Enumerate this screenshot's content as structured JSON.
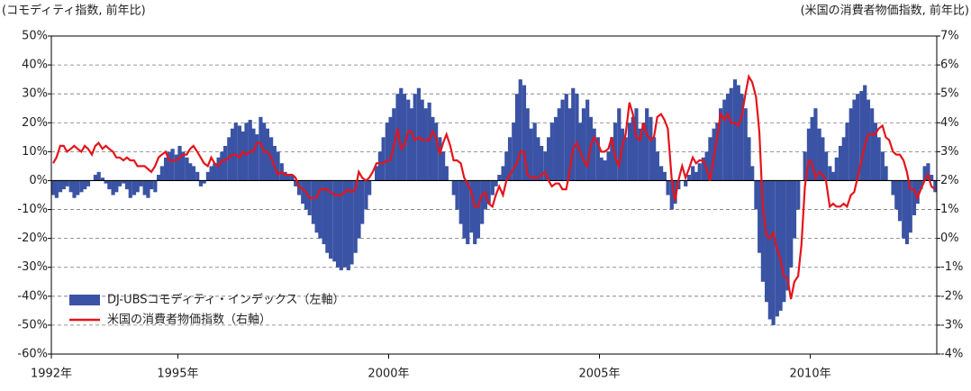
{
  "chart_data": {
    "type": "bar_line",
    "y_label": "(コモディティ指数, 前年比)",
    "y2_label": "(米国の消費者物価指数, 前年比)",
    "xlim": [
      1992,
      2013
    ],
    "xticks": [
      {
        "value": 1992,
        "label": "1992年"
      },
      {
        "value": 1995,
        "label": "1995年"
      },
      {
        "value": 2000,
        "label": "2000年"
      },
      {
        "value": 2005,
        "label": "2005年"
      },
      {
        "value": 2010,
        "label": "2010年"
      }
    ],
    "ylim": [
      -60,
      50
    ],
    "yticks": [
      {
        "value": -60,
        "label": "-60%"
      },
      {
        "value": -50,
        "label": "-50%"
      },
      {
        "value": -40,
        "label": "-40%"
      },
      {
        "value": -30,
        "label": "-30%"
      },
      {
        "value": -20,
        "label": "-20%"
      },
      {
        "value": -10,
        "label": "-10%"
      },
      {
        "value": 0,
        "label": "0%"
      },
      {
        "value": 10,
        "label": "10%"
      },
      {
        "value": 20,
        "label": "20%"
      },
      {
        "value": 30,
        "label": "30%"
      },
      {
        "value": 40,
        "label": "40%"
      },
      {
        "value": 50,
        "label": "50%"
      }
    ],
    "y2lim": [
      -4,
      7
    ],
    "y2ticks": [
      {
        "value": -4,
        "label": "-4%"
      },
      {
        "value": -3,
        "label": "-3%"
      },
      {
        "value": -2,
        "label": "-2%"
      },
      {
        "value": -1,
        "label": "-1%"
      },
      {
        "value": 0,
        "label": "0%"
      },
      {
        "value": 1,
        "label": "1%"
      },
      {
        "value": 2,
        "label": "2%"
      },
      {
        "value": 3,
        "label": "3%"
      },
      {
        "value": 4,
        "label": "4%"
      },
      {
        "value": 5,
        "label": "5%"
      },
      {
        "value": 6,
        "label": "6%"
      },
      {
        "value": 7,
        "label": "7%"
      }
    ],
    "grid": true,
    "legend": "lower left",
    "x": [
      1992.0,
      1992.08,
      1992.17,
      1992.25,
      1992.33,
      1992.42,
      1992.5,
      1992.58,
      1992.67,
      1992.75,
      1992.83,
      1992.92,
      1993.0,
      1993.08,
      1993.17,
      1993.25,
      1993.33,
      1993.42,
      1993.5,
      1993.58,
      1993.67,
      1993.75,
      1993.83,
      1993.92,
      1994.0,
      1994.08,
      1994.17,
      1994.25,
      1994.33,
      1994.42,
      1994.5,
      1994.58,
      1994.67,
      1994.75,
      1994.83,
      1994.92,
      1995.0,
      1995.08,
      1995.17,
      1995.25,
      1995.33,
      1995.42,
      1995.5,
      1995.58,
      1995.67,
      1995.75,
      1995.83,
      1995.92,
      1996.0,
      1996.08,
      1996.17,
      1996.25,
      1996.33,
      1996.42,
      1996.5,
      1996.58,
      1996.67,
      1996.75,
      1996.83,
      1996.92,
      1997.0,
      1997.08,
      1997.17,
      1997.25,
      1997.33,
      1997.42,
      1997.5,
      1997.58,
      1997.67,
      1997.75,
      1997.83,
      1997.92,
      1998.0,
      1998.08,
      1998.17,
      1998.25,
      1998.33,
      1998.42,
      1998.5,
      1998.58,
      1998.67,
      1998.75,
      1998.83,
      1998.92,
      1999.0,
      1999.08,
      1999.17,
      1999.25,
      1999.33,
      1999.42,
      1999.5,
      1999.58,
      1999.67,
      1999.75,
      1999.83,
      1999.92,
      2000.0,
      2000.08,
      2000.17,
      2000.25,
      2000.33,
      2000.42,
      2000.5,
      2000.58,
      2000.67,
      2000.75,
      2000.83,
      2000.92,
      2001.0,
      2001.08,
      2001.17,
      2001.25,
      2001.33,
      2001.42,
      2001.5,
      2001.58,
      2001.67,
      2001.75,
      2001.83,
      2001.92,
      2002.0,
      2002.08,
      2002.17,
      2002.25,
      2002.33,
      2002.42,
      2002.5,
      2002.58,
      2002.67,
      2002.75,
      2002.83,
      2002.92,
      2003.0,
      2003.08,
      2003.17,
      2003.25,
      2003.33,
      2003.42,
      2003.5,
      2003.58,
      2003.67,
      2003.75,
      2003.83,
      2003.92,
      2004.0,
      2004.08,
      2004.17,
      2004.25,
      2004.33,
      2004.42,
      2004.5,
      2004.58,
      2004.67,
      2004.75,
      2004.83,
      2004.92,
      2005.0,
      2005.08,
      2005.17,
      2005.25,
      2005.33,
      2005.42,
      2005.5,
      2005.58,
      2005.67,
      2005.75,
      2005.83,
      2005.92,
      2006.0,
      2006.08,
      2006.17,
      2006.25,
      2006.33,
      2006.42,
      2006.5,
      2006.58,
      2006.67,
      2006.75,
      2006.83,
      2006.92,
      2007.0,
      2007.08,
      2007.17,
      2007.25,
      2007.33,
      2007.42,
      2007.5,
      2007.58,
      2007.67,
      2007.75,
      2007.83,
      2007.92,
      2008.0,
      2008.08,
      2008.17,
      2008.25,
      2008.33,
      2008.42,
      2008.5,
      2008.58,
      2008.67,
      2008.75,
      2008.83,
      2008.92,
      2009.0,
      2009.08,
      2009.17,
      2009.25,
      2009.33,
      2009.42,
      2009.5,
      2009.58,
      2009.67,
      2009.75,
      2009.83,
      2009.92,
      2010.0,
      2010.08,
      2010.17,
      2010.25,
      2010.33,
      2010.42,
      2010.5,
      2010.58,
      2010.67,
      2010.75,
      2010.83,
      2010.92,
      2011.0,
      2011.08,
      2011.17,
      2011.25,
      2011.33,
      2011.42,
      2011.5,
      2011.58,
      2011.67,
      2011.75,
      2011.83,
      2011.92,
      2012.0,
      2012.08,
      2012.17,
      2012.25,
      2012.33,
      2012.42,
      2012.5,
      2012.58,
      2012.67,
      2012.75,
      2012.83,
      2012.92
    ],
    "series": [
      {
        "name": "DJ-UBSコモディティ・インデックス（左軸）",
        "color": "#3a53a4",
        "kind": "bar",
        "axis": "y",
        "values": [
          -5,
          -6,
          -4,
          -3,
          -2,
          -4,
          -6,
          -5,
          -4,
          -3,
          -2,
          0,
          2,
          3,
          1,
          -1,
          -3,
          -5,
          -4,
          -2,
          -1,
          -3,
          -6,
          -5,
          -4,
          -2,
          -5,
          -6,
          -3,
          -4,
          2,
          5,
          8,
          10,
          11,
          9,
          12,
          10,
          8,
          6,
          5,
          3,
          -2,
          -1,
          3,
          5,
          6,
          8,
          10,
          12,
          15,
          18,
          20,
          19,
          17,
          20,
          21,
          18,
          16,
          22,
          20,
          18,
          15,
          12,
          10,
          6,
          3,
          2,
          2,
          -2,
          -5,
          -8,
          -10,
          -12,
          -15,
          -18,
          -20,
          -22,
          -25,
          -27,
          -28,
          -30,
          -31,
          -30,
          -31,
          -29,
          -25,
          -20,
          -15,
          -10,
          -5,
          0,
          5,
          10,
          15,
          20,
          22,
          25,
          30,
          32,
          30,
          28,
          25,
          30,
          32,
          28,
          25,
          27,
          22,
          20,
          15,
          10,
          5,
          0,
          -5,
          -10,
          -15,
          -20,
          -22,
          -18,
          -22,
          -20,
          -15,
          -10,
          -8,
          -5,
          -2,
          2,
          5,
          10,
          15,
          20,
          30,
          35,
          33,
          25,
          18,
          20,
          15,
          12,
          10,
          15,
          20,
          22,
          25,
          28,
          30,
          25,
          32,
          30,
          20,
          25,
          28,
          22,
          18,
          15,
          8,
          7,
          10,
          15,
          20,
          25,
          18,
          15,
          20,
          22,
          25,
          18,
          20,
          25,
          22,
          15,
          10,
          5,
          3,
          -5,
          -10,
          -8,
          -3,
          0,
          -2,
          2,
          5,
          3,
          6,
          8,
          10,
          15,
          18,
          20,
          25,
          28,
          30,
          32,
          35,
          33,
          30,
          25,
          15,
          5,
          -10,
          -25,
          -35,
          -42,
          -48,
          -50,
          -47,
          -45,
          -42,
          -38,
          -30,
          -20,
          -10,
          0,
          10,
          18,
          22,
          25,
          18,
          15,
          10,
          5,
          3,
          8,
          12,
          15,
          20,
          25,
          28,
          30,
          31,
          33,
          28,
          25,
          20,
          15,
          10,
          5,
          0,
          -5,
          -10,
          -14,
          -20,
          -22,
          -18,
          -12,
          -8,
          -3,
          5,
          6,
          2,
          -4
        ]
      },
      {
        "name": "米国の消費者物価指数（右軸）",
        "color": "#e5141b",
        "kind": "line",
        "axis": "y2",
        "values": [
          2.6,
          2.8,
          3.2,
          3.2,
          3.0,
          3.1,
          3.2,
          3.1,
          3.0,
          3.2,
          3.1,
          2.9,
          3.2,
          3.3,
          3.1,
          3.2,
          3.1,
          3.0,
          2.8,
          2.8,
          2.7,
          2.8,
          2.7,
          2.7,
          2.5,
          2.5,
          2.5,
          2.4,
          2.3,
          2.5,
          2.8,
          2.9,
          3.0,
          2.7,
          2.7,
          2.7,
          2.8,
          2.9,
          2.9,
          3.1,
          3.2,
          3.0,
          2.8,
          2.6,
          2.5,
          2.8,
          2.6,
          2.5,
          2.7,
          2.7,
          2.8,
          2.9,
          2.9,
          2.8,
          3.0,
          2.9,
          3.0,
          3.0,
          3.3,
          3.3,
          3.0,
          3.0,
          2.8,
          2.5,
          2.2,
          2.3,
          2.2,
          2.2,
          2.2,
          2.1,
          1.8,
          1.7,
          1.6,
          1.4,
          1.4,
          1.4,
          1.7,
          1.7,
          1.7,
          1.6,
          1.5,
          1.5,
          1.5,
          1.6,
          1.7,
          1.6,
          1.7,
          2.3,
          2.1,
          2.0,
          2.1,
          2.3,
          2.6,
          2.6,
          2.6,
          2.7,
          2.7,
          3.2,
          3.8,
          3.1,
          3.2,
          3.7,
          3.7,
          3.4,
          3.5,
          3.4,
          3.4,
          3.4,
          3.7,
          3.5,
          2.9,
          3.3,
          3.6,
          3.2,
          2.7,
          2.7,
          2.6,
          2.1,
          1.9,
          1.6,
          1.1,
          1.1,
          1.5,
          1.6,
          1.2,
          1.1,
          1.5,
          1.8,
          1.5,
          2.0,
          2.2,
          2.4,
          2.6,
          3.0,
          3.0,
          2.2,
          2.1,
          2.1,
          2.1,
          2.2,
          2.3,
          2.0,
          1.8,
          1.9,
          1.9,
          1.7,
          1.7,
          2.3,
          3.1,
          3.3,
          3.0,
          2.7,
          2.5,
          3.2,
          3.5,
          3.3,
          3.0,
          3.0,
          3.1,
          3.5,
          2.8,
          2.5,
          3.2,
          3.6,
          4.7,
          4.3,
          3.5,
          3.4,
          4.0,
          3.6,
          3.4,
          3.5,
          4.2,
          4.3,
          4.1,
          3.8,
          2.1,
          1.3,
          2.0,
          2.5,
          2.1,
          2.4,
          2.8,
          2.6,
          2.7,
          2.7,
          2.4,
          2.0,
          2.8,
          3.5,
          4.3,
          4.1,
          4.3,
          4.0,
          4.0,
          3.9,
          4.2,
          5.0,
          5.6,
          5.4,
          4.9,
          3.7,
          1.1,
          0.1,
          0.0,
          0.2,
          -0.4,
          -0.7,
          -1.3,
          -1.4,
          -2.1,
          -1.5,
          -1.3,
          -0.2,
          1.8,
          2.7,
          2.6,
          2.1,
          2.3,
          2.2,
          2.0,
          1.1,
          1.2,
          1.1,
          1.1,
          1.2,
          1.1,
          1.5,
          1.6,
          2.1,
          2.7,
          3.2,
          3.6,
          3.6,
          3.6,
          3.8,
          3.9,
          3.5,
          3.4,
          3.0,
          2.9,
          2.9,
          2.7,
          2.3,
          1.7,
          1.7,
          1.4,
          1.7,
          2.0,
          2.2,
          1.8,
          1.7
        ]
      }
    ]
  }
}
